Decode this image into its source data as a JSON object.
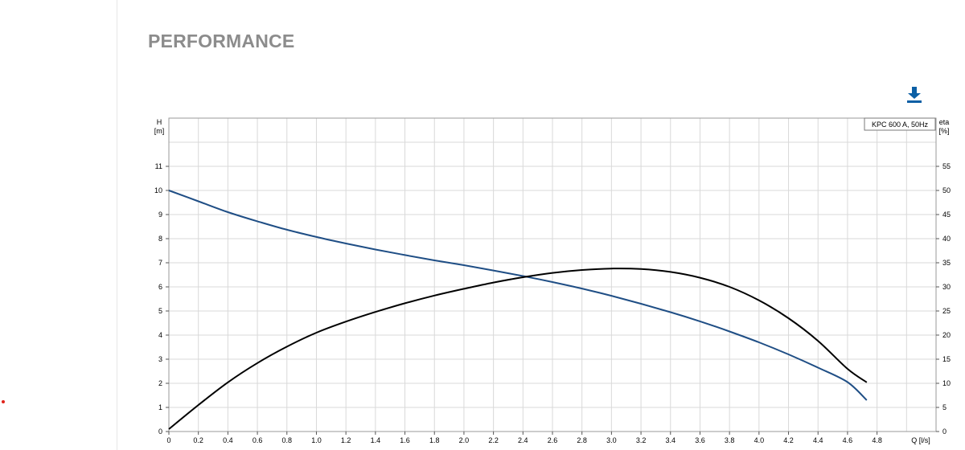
{
  "page": {
    "section_title": "PERFORMANCE",
    "download_icon": "download-icon",
    "accent_color": "#0b5fa5"
  },
  "chart_data": {
    "type": "line",
    "legend_box": "KPC 600 A, 50Hz",
    "legend_placement": "top-right",
    "xlabel": "Q [l/s]",
    "ylabel_left": {
      "line1": "H",
      "line2": "[m]"
    },
    "ylabel_right": {
      "line1": "eta",
      "line2": "[%]"
    },
    "xlim": [
      0,
      5.2
    ],
    "ylim_left": [
      0,
      13
    ],
    "ylim_right": [
      0,
      65
    ],
    "grid": true,
    "x_ticks": [
      0,
      0.2,
      0.4,
      0.6,
      0.8,
      1.0,
      1.2,
      1.4,
      1.6,
      1.8,
      2.0,
      2.2,
      2.4,
      2.6,
      2.8,
      3.0,
      3.2,
      3.4,
      3.6,
      3.8,
      4.0,
      4.2,
      4.4,
      4.6,
      4.8
    ],
    "x_tick_labels": [
      "0",
      "0.2",
      "0.4",
      "0.6",
      "0.8",
      "1.0",
      "1.2",
      "1.4",
      "1.6",
      "1.8",
      "2.0",
      "2.2",
      "2.4",
      "2.6",
      "2.8",
      "3.0",
      "3.2",
      "3.4",
      "3.6",
      "3.8",
      "4.0",
      "4.2",
      "4.4",
      "4.6",
      "4.8"
    ],
    "y_left_ticks": [
      0,
      1,
      2,
      3,
      4,
      5,
      6,
      7,
      8,
      9,
      10,
      11
    ],
    "y_right_ticks": [
      0,
      5,
      10,
      15,
      20,
      25,
      30,
      35,
      40,
      45,
      50,
      55
    ],
    "series": [
      {
        "axis": "left",
        "color": "#1f4e85",
        "x": [
          0,
          0.2,
          0.4,
          0.6,
          0.8,
          1.0,
          1.2,
          1.4,
          1.6,
          1.8,
          2.0,
          2.2,
          2.4,
          2.6,
          2.8,
          3.0,
          3.2,
          3.4,
          3.6,
          3.8,
          4.0,
          4.2,
          4.4,
          4.6,
          4.73
        ],
        "values": [
          10.0,
          9.55,
          9.1,
          8.72,
          8.37,
          8.07,
          7.8,
          7.55,
          7.32,
          7.1,
          6.9,
          6.68,
          6.45,
          6.2,
          5.93,
          5.63,
          5.3,
          4.95,
          4.57,
          4.15,
          3.7,
          3.2,
          2.65,
          2.05,
          1.3
        ]
      },
      {
        "axis": "right",
        "color": "#000000",
        "x": [
          0,
          0.2,
          0.4,
          0.6,
          0.8,
          1.0,
          1.2,
          1.4,
          1.6,
          1.8,
          2.0,
          2.2,
          2.4,
          2.6,
          2.8,
          3.0,
          3.2,
          3.4,
          3.6,
          3.8,
          4.0,
          4.2,
          4.4,
          4.6,
          4.73
        ],
        "values": [
          0.5,
          5.5,
          10.2,
          14.2,
          17.6,
          20.5,
          22.8,
          24.8,
          26.6,
          28.2,
          29.6,
          30.9,
          32.0,
          32.9,
          33.5,
          33.8,
          33.7,
          33.1,
          31.9,
          30.0,
          27.2,
          23.5,
          18.8,
          13.0,
          10.2
        ]
      }
    ]
  }
}
